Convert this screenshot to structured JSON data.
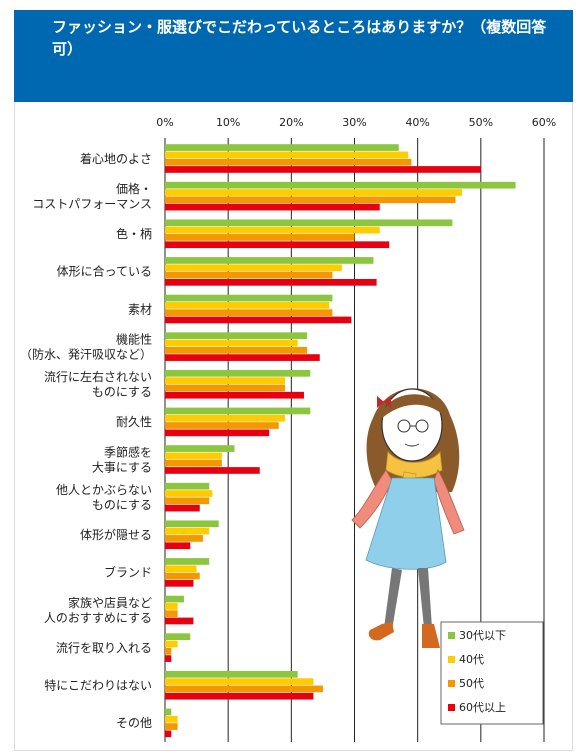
{
  "title": "ファッション・服選びでこだわっているところはありますか？（複数回答可）",
  "colors": {
    "header_bg": "#0068B0",
    "series": [
      "#8CC63F",
      "#FFCC00",
      "#F39800",
      "#E60012"
    ]
  },
  "chart_data": {
    "type": "bar",
    "orientation": "horizontal",
    "title": "ファッション・服選びでこだわっているところはありますか？（複数回答可）",
    "xlim": [
      0,
      60
    ],
    "xticks": [
      "0%",
      "10%",
      "20%",
      "30%",
      "40%",
      "50%",
      "60%"
    ],
    "grid": true,
    "legend_position": "bottom-right",
    "categories": [
      [
        "着心地のよさ"
      ],
      [
        "価格・",
        "コストパフォーマンス"
      ],
      [
        "色・柄"
      ],
      [
        "体形に合っている"
      ],
      [
        "素材"
      ],
      [
        "機能性",
        "（防水、発汗吸収など）"
      ],
      [
        "流行に左右されない",
        "ものにする"
      ],
      [
        "耐久性"
      ],
      [
        "季節感を",
        "大事にする"
      ],
      [
        "他人とかぶらない",
        "ものにする"
      ],
      [
        "体形が隠せる"
      ],
      [
        "ブランド"
      ],
      [
        "家族や店員など",
        "人のおすすめにする"
      ],
      [
        "流行を取り入れる"
      ],
      [
        "特にこだわりはない"
      ],
      [
        "その他"
      ]
    ],
    "series": [
      {
        "name": "30代以下",
        "values": [
          37,
          55.5,
          45.5,
          33,
          26.5,
          22.5,
          23,
          23,
          11,
          7,
          8.5,
          7,
          3,
          4,
          21,
          1
        ]
      },
      {
        "name": "40代",
        "values": [
          38.5,
          47,
          34,
          28,
          26,
          21,
          19,
          19,
          9,
          7.5,
          7,
          5,
          2,
          2,
          23.5,
          2
        ]
      },
      {
        "name": "50代",
        "values": [
          39,
          46,
          30,
          26.5,
          26.5,
          22.5,
          19,
          18,
          9,
          7,
          6,
          5.5,
          2,
          1,
          25,
          2
        ]
      },
      {
        "name": "60代以上",
        "values": [
          50,
          34,
          35.5,
          33.5,
          29.5,
          24.5,
          22,
          16.5,
          15,
          5.5,
          4,
          4.5,
          4.5,
          1,
          23.5,
          1
        ]
      }
    ]
  }
}
